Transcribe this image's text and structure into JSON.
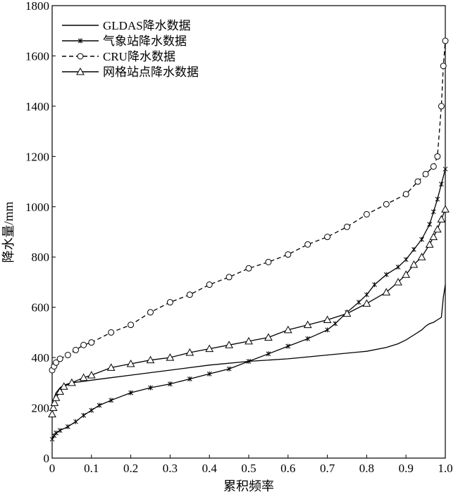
{
  "chart_data": {
    "type": "line",
    "xlabel": "累积频率",
    "ylabel": "降水量/mm",
    "xlim": [
      0,
      1
    ],
    "ylim": [
      0,
      1800
    ],
    "x_ticks": [
      "0",
      "0.1",
      "0.2",
      "0.3",
      "0.4",
      "0.5",
      "0.6",
      "0.7",
      "0.8",
      "0.9",
      "1.0"
    ],
    "y_ticks": [
      "0",
      "200",
      "400",
      "600",
      "800",
      "1000",
      "1200",
      "1400",
      "1600",
      "1800"
    ],
    "grid": false,
    "legend_position": "top-left",
    "series": [
      {
        "name": "GLDAS降水数据",
        "marker": "none",
        "dash": "solid",
        "x": [
          0,
          0.005,
          0.01,
          0.02,
          0.03,
          0.05,
          0.08,
          0.1,
          0.15,
          0.2,
          0.3,
          0.4,
          0.5,
          0.6,
          0.7,
          0.8,
          0.85,
          0.88,
          0.9,
          0.92,
          0.94,
          0.95,
          0.96,
          0.97,
          0.98,
          0.99,
          0.995,
          1.0
        ],
        "values": [
          200,
          240,
          260,
          280,
          290,
          300,
          305,
          310,
          320,
          330,
          350,
          370,
          385,
          395,
          410,
          425,
          440,
          455,
          470,
          490,
          510,
          525,
          535,
          540,
          550,
          560,
          640,
          690
        ]
      },
      {
        "name": "气象站降水数据",
        "marker": "x",
        "dash": "solid",
        "x": [
          0,
          0.005,
          0.01,
          0.02,
          0.04,
          0.06,
          0.08,
          0.1,
          0.12,
          0.15,
          0.2,
          0.25,
          0.3,
          0.35,
          0.4,
          0.45,
          0.5,
          0.55,
          0.6,
          0.65,
          0.7,
          0.72,
          0.75,
          0.78,
          0.8,
          0.82,
          0.85,
          0.88,
          0.9,
          0.92,
          0.94,
          0.96,
          0.97,
          0.98,
          0.99,
          1.0
        ],
        "values": [
          75,
          90,
          100,
          110,
          125,
          145,
          170,
          190,
          210,
          230,
          260,
          280,
          295,
          315,
          335,
          355,
          385,
          415,
          445,
          475,
          510,
          535,
          580,
          620,
          650,
          690,
          730,
          760,
          790,
          830,
          870,
          930,
          980,
          1030,
          1090,
          1150
        ]
      },
      {
        "name": "CRU降水数据",
        "marker": "circle",
        "dash": "dashed",
        "x": [
          0,
          0.005,
          0.01,
          0.02,
          0.04,
          0.06,
          0.08,
          0.1,
          0.15,
          0.2,
          0.25,
          0.3,
          0.35,
          0.4,
          0.45,
          0.5,
          0.55,
          0.6,
          0.65,
          0.7,
          0.75,
          0.8,
          0.85,
          0.9,
          0.93,
          0.95,
          0.97,
          0.98,
          0.99,
          0.995,
          1.0
        ],
        "values": [
          350,
          365,
          380,
          395,
          410,
          430,
          450,
          460,
          500,
          530,
          580,
          620,
          650,
          690,
          720,
          755,
          780,
          810,
          850,
          880,
          920,
          970,
          1010,
          1050,
          1100,
          1130,
          1160,
          1200,
          1400,
          1560,
          1660
        ]
      },
      {
        "name": "网格站点降水数据",
        "marker": "triangle",
        "dash": "solid",
        "x": [
          0,
          0.003,
          0.006,
          0.01,
          0.02,
          0.03,
          0.05,
          0.08,
          0.1,
          0.15,
          0.2,
          0.25,
          0.3,
          0.35,
          0.4,
          0.45,
          0.5,
          0.55,
          0.6,
          0.65,
          0.7,
          0.75,
          0.8,
          0.85,
          0.88,
          0.9,
          0.92,
          0.94,
          0.96,
          0.97,
          0.98,
          0.99,
          1.0
        ],
        "values": [
          175,
          200,
          220,
          240,
          265,
          285,
          300,
          320,
          330,
          360,
          375,
          390,
          400,
          420,
          435,
          450,
          465,
          480,
          510,
          530,
          550,
          575,
          615,
          660,
          700,
          730,
          770,
          800,
          850,
          880,
          910,
          950,
          990
        ]
      }
    ]
  }
}
